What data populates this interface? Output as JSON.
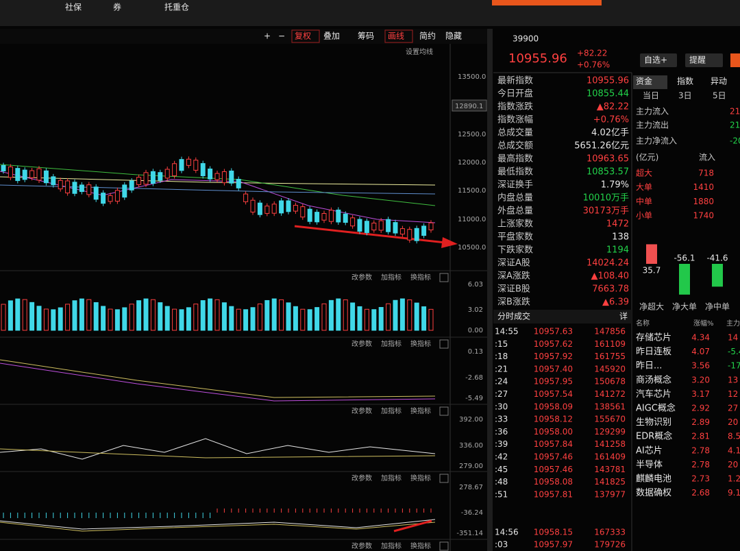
{
  "top_menu": [
    "社保",
    "券",
    "托重仓"
  ],
  "toolbar": [
    "+",
    "−",
    "复权",
    "叠加",
    "筹码",
    "画线",
    "简约",
    "隐藏"
  ],
  "ma_setting": "设置均线",
  "price_axis": [
    "13500.0",
    "12500.0",
    "12000.0",
    "11500.0",
    "11000.0",
    "10500.0"
  ],
  "price_marker": "12890.1",
  "panel_actions": [
    "改参数",
    "加指标",
    "换指标"
  ],
  "panels": [
    [
      "6.03",
      "3.02",
      "0.00"
    ],
    [
      "0.13",
      "-2.68",
      "-5.49"
    ],
    [
      "392.00",
      "336.00",
      "279.00"
    ],
    [
      "278.67",
      "-36.24",
      "-351.14"
    ]
  ],
  "quote": {
    "code": "39900",
    "price": "10955.96",
    "change": "+82.22",
    "pct": "+0.76%",
    "rows": [
      [
        "最新指数",
        "10955.96"
      ],
      [
        "今日开盘",
        "10855.44"
      ],
      [
        "指数涨跌",
        "▲82.22"
      ],
      [
        "指数涨幅",
        "+0.76%"
      ],
      [
        "总成交量",
        "4.02亿手"
      ],
      [
        "总成交额",
        "5651.26亿元"
      ],
      [
        "最高指数",
        "10963.65"
      ],
      [
        "最低指数",
        "10853.57"
      ],
      [
        "深证换手",
        "1.79%"
      ],
      [
        "内盘总量",
        "10010万手"
      ],
      [
        "外盘总量",
        "30173万手"
      ],
      [
        "上涨家数",
        "1472"
      ],
      [
        "平盘家数",
        "138"
      ],
      [
        "下跌家数",
        "1194"
      ],
      [
        "深证A股",
        "14024.24"
      ],
      [
        "深A涨跌",
        "▲108.40"
      ],
      [
        "深证B股",
        "7663.78"
      ],
      [
        "深B涨跌",
        "▲6.39"
      ]
    ]
  },
  "buttons": [
    "自选+",
    "提醒"
  ],
  "ticks_title": "分时成交",
  "ticks_detail": "详",
  "ticks": [
    [
      "14:55",
      "10957.63",
      "147856"
    ],
    [
      ":15",
      "10957.62",
      "161109"
    ],
    [
      ":18",
      "10957.92",
      "161755"
    ],
    [
      ":21",
      "10957.40",
      "145920"
    ],
    [
      ":24",
      "10957.95",
      "150678"
    ],
    [
      ":27",
      "10957.54",
      "141272"
    ],
    [
      ":30",
      "10958.09",
      "138561"
    ],
    [
      ":33",
      "10958.12",
      "155670"
    ],
    [
      ":36",
      "10958.00",
      "129299"
    ],
    [
      ":39",
      "10957.84",
      "141258"
    ],
    [
      ":42",
      "10957.46",
      "161409"
    ],
    [
      ":45",
      "10957.46",
      "143781"
    ],
    [
      ":48",
      "10958.08",
      "141825"
    ],
    [
      ":51",
      "10957.81",
      "137977"
    ],
    [
      "14:56",
      "10958.15",
      "167333"
    ],
    [
      ":03",
      "10957.97",
      "179726"
    ]
  ],
  "flow": {
    "tabs": [
      "资金",
      "指数",
      "异动"
    ],
    "periods": [
      "当日",
      "3日",
      "5日"
    ],
    "summary": [
      [
        "主力流入",
        "21"
      ],
      [
        "主力流出",
        "21"
      ],
      [
        "主力净流入",
        "-20"
      ]
    ],
    "unit": "(亿元)",
    "column": "流入",
    "rows": [
      [
        "超大",
        "718"
      ],
      [
        "大单",
        "1410"
      ],
      [
        "中单",
        "1880"
      ],
      [
        "小单",
        "1740"
      ]
    ],
    "bars": {
      "values": [
        35.7,
        -56.1,
        -41.6
      ],
      "labels": [
        "净超大",
        "净大单",
        "净中单"
      ]
    }
  },
  "sectors": {
    "header": [
      "名称",
      "涨幅%",
      "主力"
    ],
    "rows": [
      [
        "存储芯片",
        "4.34",
        "14"
      ],
      [
        "昨日连板",
        "4.07",
        "-5.4"
      ],
      [
        "昨日...",
        "3.56",
        "-17"
      ],
      [
        "商汤概念",
        "3.20",
        "13"
      ],
      [
        "汽车芯片",
        "3.17",
        "12"
      ],
      [
        "AIGC概念",
        "2.92",
        "27"
      ],
      [
        "生物识别",
        "2.89",
        "20"
      ],
      [
        "EDR概念",
        "2.81",
        "8.5"
      ],
      [
        "AI芯片",
        "2.78",
        "4.1"
      ],
      [
        "半导体",
        "2.78",
        "20"
      ],
      [
        "麒麟电池",
        "2.73",
        "1.2"
      ],
      [
        "数据确权",
        "2.68",
        "9.1"
      ]
    ]
  }
}
